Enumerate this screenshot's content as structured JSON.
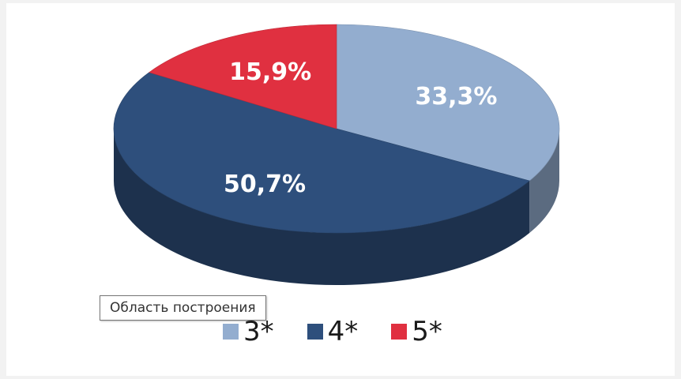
{
  "chart_data": {
    "type": "pie",
    "style": "3d",
    "categories": [
      "3*",
      "4*",
      "5*"
    ],
    "values": [
      33.3,
      50.7,
      15.9
    ],
    "labels": [
      "33,3%",
      "50,7%",
      "15,9%"
    ],
    "colors": [
      "#93adcf",
      "#2e4f7c",
      "#e03040"
    ],
    "legend": {
      "position": "bottom"
    }
  },
  "tooltip": {
    "text": "Область построения"
  }
}
